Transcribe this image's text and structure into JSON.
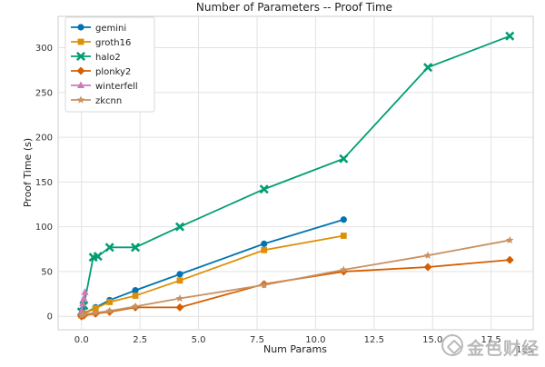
{
  "chart_data": {
    "type": "line",
    "title": "Number of Parameters -- Proof Time",
    "xlabel": "Num Params",
    "ylabel": "Proof Time (s)",
    "x_scale_label": "1e5",
    "xlim": [
      -1.0,
      19.3
    ],
    "ylim": [
      -15,
      335
    ],
    "xticks": [
      0.0,
      2.5,
      5.0,
      7.5,
      10.0,
      12.5,
      15.0,
      17.5
    ],
    "xtick_labels": [
      "0.0",
      "2.5",
      "5.0",
      "7.5",
      "10.0",
      "12.5",
      "15.0",
      "17.5"
    ],
    "yticks": [
      0,
      50,
      100,
      150,
      200,
      250,
      300
    ],
    "ytick_labels": [
      "0",
      "50",
      "100",
      "150",
      "200",
      "250",
      "300"
    ],
    "grid": true,
    "legend_position": "top-left",
    "series": [
      {
        "name": "gemini",
        "color": "#0173b2",
        "marker": "circle",
        "x": [
          0.0,
          0.1,
          0.6,
          1.2,
          2.3,
          4.2,
          7.8,
          11.2
        ],
        "y": [
          1,
          3,
          10,
          18,
          29,
          47,
          81,
          108
        ]
      },
      {
        "name": "groth16",
        "color": "#de8f05",
        "marker": "square",
        "x": [
          0.0,
          0.1,
          0.6,
          1.2,
          2.3,
          4.2,
          7.8,
          11.2
        ],
        "y": [
          1,
          3,
          9,
          16,
          23,
          40,
          74,
          90
        ]
      },
      {
        "name": "halo2",
        "color": "#029e73",
        "marker": "x",
        "x": [
          0.0,
          0.1,
          0.5,
          0.7,
          1.2,
          2.3,
          4.2,
          7.8,
          11.2,
          14.8,
          18.3
        ],
        "y": [
          5,
          12,
          66,
          67,
          77,
          77,
          100,
          142,
          176,
          278,
          313
        ]
      },
      {
        "name": "plonky2",
        "color": "#d55e00",
        "marker": "diamond",
        "x": [
          0.0,
          0.1,
          0.6,
          1.2,
          2.3,
          4.2,
          7.8,
          11.2,
          14.8,
          18.3
        ],
        "y": [
          0,
          1,
          3,
          5,
          10,
          10,
          36,
          50,
          55,
          63
        ]
      },
      {
        "name": "winterfell",
        "color": "#cc78bc",
        "marker": "triangle",
        "x": [
          0.0,
          0.05,
          0.1,
          0.15
        ],
        "y": [
          6,
          14,
          20,
          27
        ]
      },
      {
        "name": "zkcnn",
        "color": "#ca9161",
        "marker": "star",
        "x": [
          0.0,
          0.1,
          0.6,
          1.2,
          2.3,
          4.2,
          7.8,
          11.2,
          14.8,
          18.3
        ],
        "y": [
          1,
          2,
          4,
          6,
          11,
          20,
          35,
          52,
          68,
          85
        ]
      }
    ]
  },
  "watermark": {
    "text": "金色财经"
  }
}
